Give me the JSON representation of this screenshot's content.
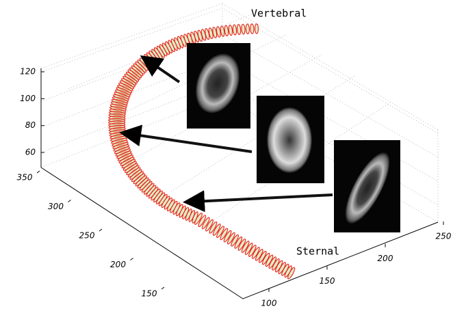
{
  "figure": {
    "labels": {
      "top": "Vertebral",
      "bottom": "Sternal"
    },
    "axes": {
      "z_ticks": [
        60,
        80,
        100,
        120
      ],
      "y_ticks": [
        350,
        300,
        250,
        200,
        150
      ],
      "x_ticks": [
        100,
        150,
        200,
        250
      ]
    }
  }
}
